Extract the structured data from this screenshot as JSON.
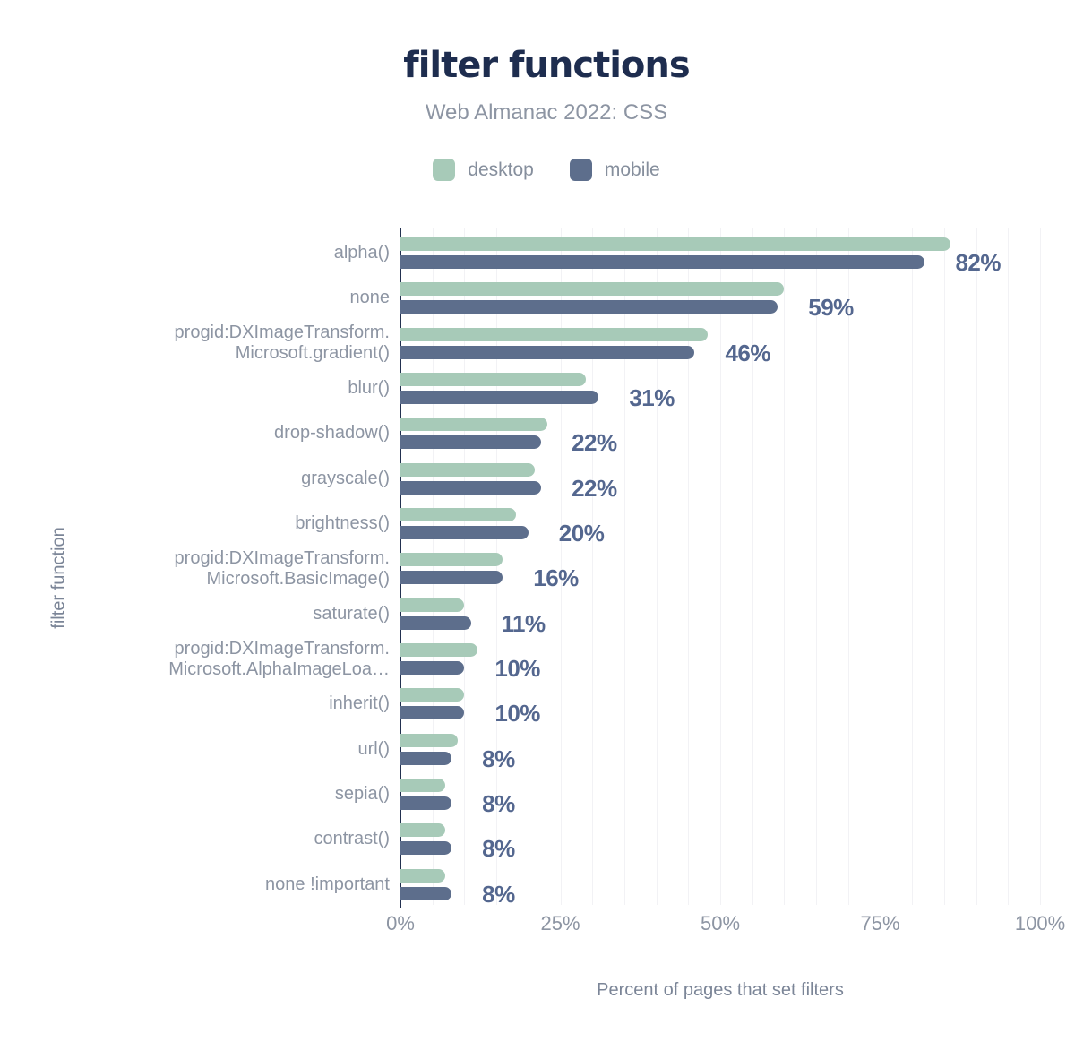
{
  "header": {
    "title": "filter functions",
    "subtitle": "Web Almanac 2022: CSS"
  },
  "legend": [
    {
      "label": "desktop",
      "color": "#a7cab8"
    },
    {
      "label": "mobile",
      "color": "#5d6e8c"
    }
  ],
  "axes": {
    "x_title": "Percent of pages that set filters",
    "y_title": "filter function",
    "x_ticks": [
      "0%",
      "25%",
      "50%",
      "75%",
      "100%"
    ],
    "x_tick_percents": [
      0,
      25,
      50,
      75,
      100
    ]
  },
  "chart_data": {
    "type": "bar",
    "orientation": "horizontal",
    "title": "filter functions",
    "subtitle": "Web Almanac 2022: CSS",
    "xlabel": "Percent of pages that set filters",
    "ylabel": "filter function",
    "xlim": [
      0,
      100
    ],
    "grid": "vertical, every 5%",
    "legend_position": "top",
    "categories": [
      "alpha()",
      "none",
      "progid:DXImageTransform.Microsoft.gradient()",
      "blur()",
      "drop-shadow()",
      "grayscale()",
      "brightness()",
      "progid:DXImageTransform.Microsoft.BasicImage()",
      "saturate()",
      "progid:DXImageTransform.Microsoft.AlphaImageLoa…",
      "inherit()",
      "url()",
      "sepia()",
      "contrast()",
      "none !important"
    ],
    "category_display": [
      [
        "alpha()"
      ],
      [
        "none"
      ],
      [
        "progid:DXImageTransform.",
        "Microsoft.gradient()"
      ],
      [
        "blur()"
      ],
      [
        "drop-shadow()"
      ],
      [
        "grayscale()"
      ],
      [
        "brightness()"
      ],
      [
        "progid:DXImageTransform.",
        "Microsoft.BasicImage()"
      ],
      [
        "saturate()"
      ],
      [
        "progid:DXImageTransform.",
        "Microsoft.AlphaImageLoa…"
      ],
      [
        "inherit()"
      ],
      [
        "url()"
      ],
      [
        "sepia()"
      ],
      [
        "contrast()"
      ],
      [
        "none !important"
      ]
    ],
    "series": [
      {
        "name": "desktop",
        "color": "#a7cab8",
        "values": [
          86,
          60,
          48,
          29,
          23,
          21,
          18,
          16,
          10,
          12,
          10,
          9,
          7,
          7,
          7
        ]
      },
      {
        "name": "mobile",
        "color": "#5d6e8c",
        "values": [
          82,
          59,
          46,
          31,
          22,
          22,
          20,
          16,
          11,
          10,
          10,
          8,
          8,
          8,
          8
        ]
      }
    ],
    "bar_labels": [
      "82%",
      "59%",
      "46%",
      "31%",
      "22%",
      "22%",
      "20%",
      "16%",
      "11%",
      "10%",
      "10%",
      "8%",
      "8%",
      "8%",
      "8%"
    ],
    "bar_label_series": "mobile"
  },
  "colors": {
    "title": "#1e2d4f",
    "muted_text": "#8d95a3",
    "axis_titles": "#7b8597",
    "value_label": "#54678f",
    "axis_line": "#22304f",
    "gridline": "#f2f2f5",
    "background": "#ffffff"
  }
}
